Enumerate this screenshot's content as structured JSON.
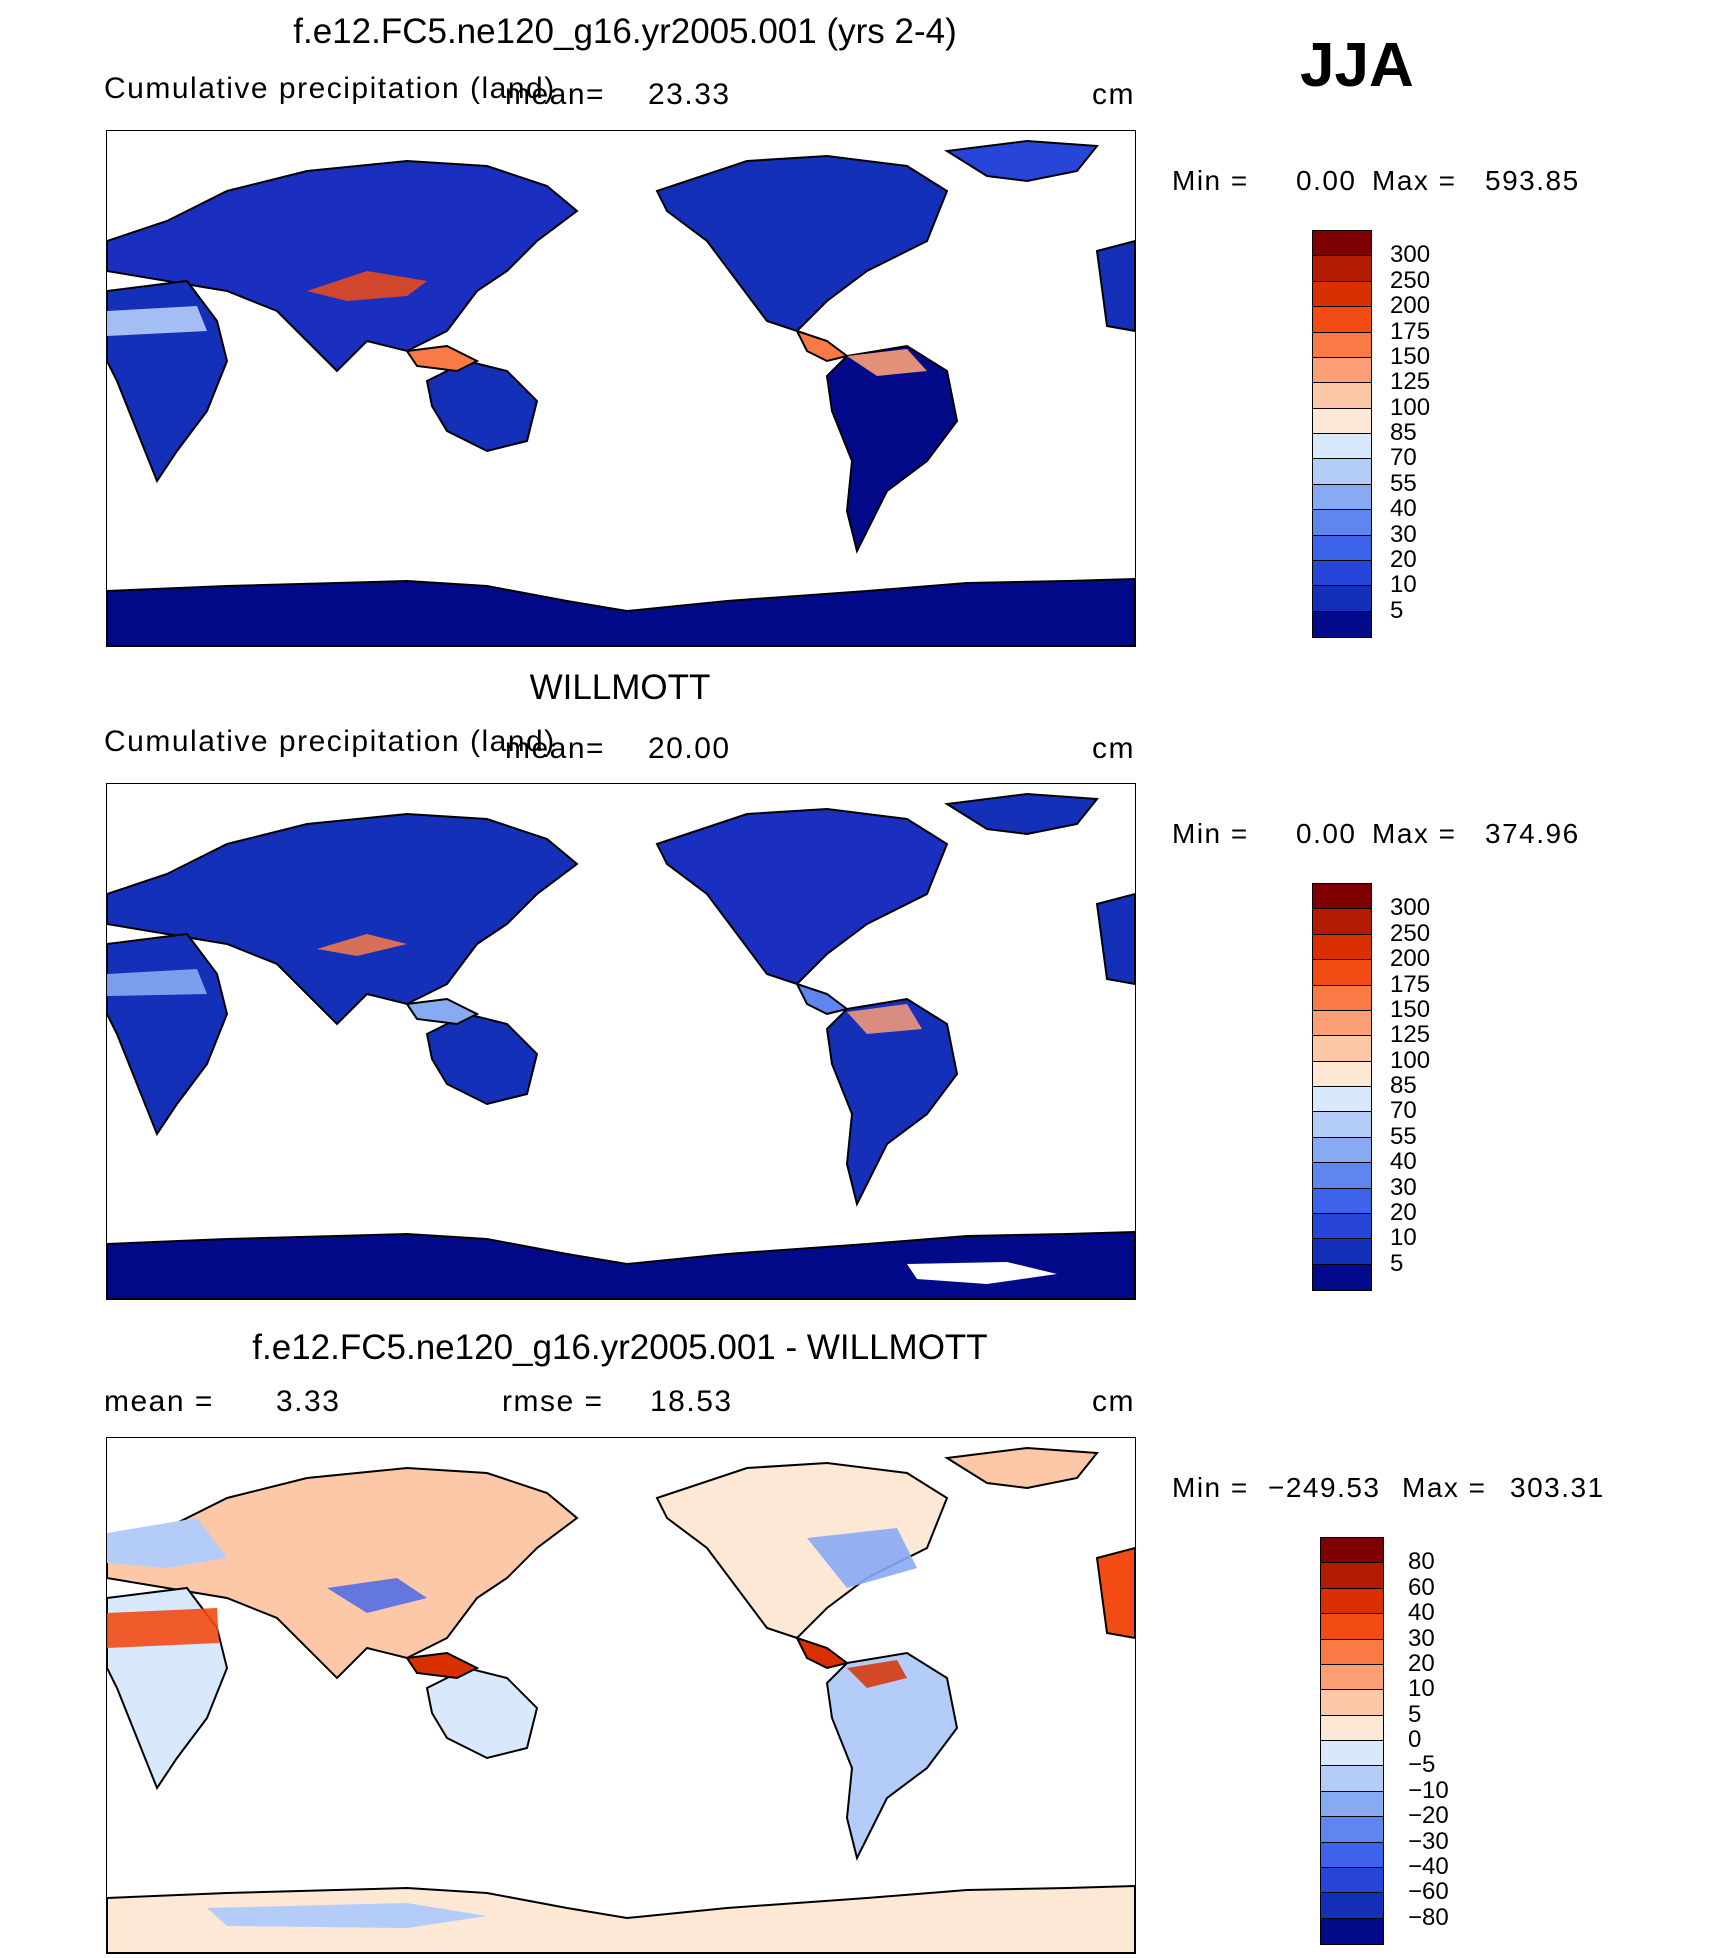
{
  "season": "JJA",
  "panels": [
    {
      "title": "f.e12.FC5.ne120_g16.yr2005.001 (yrs 2-4)",
      "left_label": "Cumulative precipitation (land)",
      "mean_label": "mean=",
      "mean_value": "23.33",
      "units": "cm",
      "min_label": "Min =",
      "min_value": "0.00",
      "max_label": "Max =",
      "max_value": "593.85"
    },
    {
      "title": "WILLMOTT",
      "left_label": "Cumulative precipitation (land)",
      "mean_label": "mean=",
      "mean_value": "20.00",
      "units": "cm",
      "min_label": "Min =",
      "min_value": "0.00",
      "max_label": "Max =",
      "max_value": "374.96"
    },
    {
      "title": "f.e12.FC5.ne120_g16.yr2005.001 - WILLMOTT",
      "left_label": "mean =",
      "mean_value": "3.33",
      "rmse_label": "rmse =",
      "rmse_value": "18.53",
      "units": "cm",
      "min_label": "Min =",
      "min_value": "−249.53",
      "max_label": "Max =",
      "max_value": "303.31"
    }
  ],
  "chart_data": [
    {
      "type": "heatmap",
      "title": "f.e12.FC5.ne120_g16.yr2005.001 (yrs 2-4)",
      "variable": "Cumulative precipitation (land)",
      "units": "cm",
      "mean": 23.33,
      "min": 0.0,
      "max": 593.85,
      "colorbar_levels": [
        "300",
        "250",
        "200",
        "175",
        "150",
        "125",
        "100",
        "85",
        "70",
        "55",
        "40",
        "30",
        "20",
        "10",
        "5"
      ],
      "colorbar_colors": [
        "#7f0000",
        "#b21b00",
        "#d83000",
        "#f24b14",
        "#fa7a46",
        "#fc9e76",
        "#fdc8a8",
        "#fde8d6",
        "#d8e9fb",
        "#b4cdf8",
        "#88aaf3",
        "#5f86ee",
        "#3d63ea",
        "#2745d8",
        "#1530b8",
        "#020a8a"
      ]
    },
    {
      "type": "heatmap",
      "title": "WILLMOTT",
      "variable": "Cumulative precipitation (land)",
      "units": "cm",
      "mean": 20.0,
      "min": 0.0,
      "max": 374.96,
      "colorbar_levels": [
        "300",
        "250",
        "200",
        "175",
        "150",
        "125",
        "100",
        "85",
        "70",
        "55",
        "40",
        "30",
        "20",
        "10",
        "5"
      ],
      "colorbar_colors": [
        "#7f0000",
        "#b21b00",
        "#d83000",
        "#f24b14",
        "#fa7a46",
        "#fc9e76",
        "#fdc8a8",
        "#fde8d6",
        "#d8e9fb",
        "#b4cdf8",
        "#88aaf3",
        "#5f86ee",
        "#3d63ea",
        "#2745d8",
        "#1530b8",
        "#020a8a"
      ]
    },
    {
      "type": "heatmap",
      "title": "f.e12.FC5.ne120_g16.yr2005.001 - WILLMOTT",
      "units": "cm",
      "mean": 3.33,
      "rmse": 18.53,
      "min": -249.53,
      "max": 303.31,
      "colorbar_levels": [
        "80",
        "60",
        "40",
        "30",
        "20",
        "10",
        "5",
        "0",
        "−5",
        "−10",
        "−20",
        "−30",
        "−40",
        "−60",
        "−80"
      ],
      "colorbar_colors": [
        "#7f0000",
        "#b21b00",
        "#d83000",
        "#f24b14",
        "#fa7a46",
        "#fc9e76",
        "#fdc8a8",
        "#fde8d6",
        "#d8e9fb",
        "#b4cdf8",
        "#88aaf3",
        "#5f86ee",
        "#3d63ea",
        "#2745d8",
        "#1530b8",
        "#020a8a"
      ]
    }
  ]
}
